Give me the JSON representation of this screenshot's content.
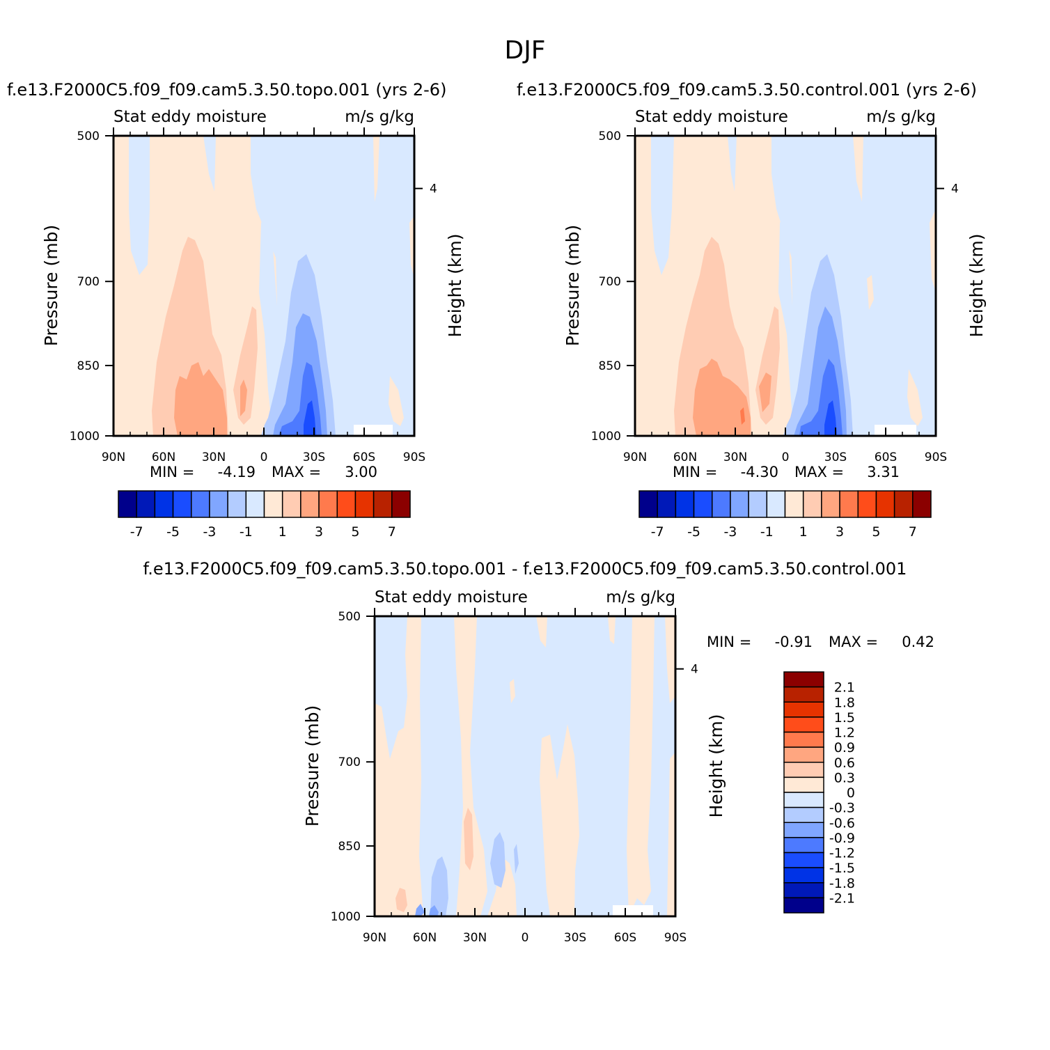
{
  "page_title": "DJF",
  "colorbar_colors": [
    "#00008b",
    "#0019b8",
    "#0033e6",
    "#1a4dff",
    "#4d7aff",
    "#80a6ff",
    "#b3ccff",
    "#d9e9ff",
    "#ffe9d6",
    "#ffccb3",
    "#ffa680",
    "#ff7a4d",
    "#ff4d1a",
    "#e63300",
    "#b82200",
    "#8b0000"
  ],
  "chart_data": [
    {
      "type": "heatmap",
      "title": "f.e13.F2000C5.f09_f09.cam5.3.50.topo.001 (yrs 2-6)",
      "subtitle_left": "Stat eddy moisture",
      "subtitle_right": "m/s g/kg",
      "ylabel": "Pressure (mb)",
      "ylabel_right": "Height (km)",
      "x_ticks": [
        "90N",
        "60N",
        "30N",
        "0",
        "30S",
        "60S",
        "90S"
      ],
      "y_ticks": [
        "500",
        "700",
        "850",
        "1000"
      ],
      "right_ticks": [
        "4"
      ],
      "min_label": "MIN =",
      "min_value": "-4.19",
      "max_label": "MAX =",
      "max_value": "3.00",
      "colorbar_labels": [
        "-7",
        "-5",
        "-3",
        "-1",
        "1",
        "3",
        "5",
        "7"
      ],
      "features": [
        {
          "lat": -30,
          "pressure": 920,
          "value": -4.19
        },
        {
          "lat": 45,
          "pressure": 950,
          "value": 3.0
        }
      ]
    },
    {
      "type": "heatmap",
      "title": "f.e13.F2000C5.f09_f09.cam5.3.50.control.001 (yrs 2-6)",
      "subtitle_left": "Stat eddy moisture",
      "subtitle_right": "m/s g/kg",
      "ylabel": "Pressure (mb)",
      "ylabel_right": "Height (km)",
      "x_ticks": [
        "90N",
        "60N",
        "30N",
        "0",
        "30S",
        "60S",
        "90S"
      ],
      "y_ticks": [
        "500",
        "700",
        "850",
        "1000"
      ],
      "right_ticks": [
        "4"
      ],
      "min_label": "MIN =",
      "min_value": "-4.30",
      "max_label": "MAX =",
      "max_value": "3.31",
      "colorbar_labels": [
        "-7",
        "-5",
        "-3",
        "-1",
        "1",
        "3",
        "5",
        "7"
      ],
      "features": [
        {
          "lat": -28,
          "pressure": 920,
          "value": -4.3
        },
        {
          "lat": 27,
          "pressure": 950,
          "value": 3.31
        }
      ]
    },
    {
      "type": "heatmap",
      "title": "f.e13.F2000C5.f09_f09.cam5.3.50.topo.001 - f.e13.F2000C5.f09_f09.cam5.3.50.control.001",
      "subtitle_left": "Stat eddy moisture",
      "subtitle_right": "m/s g/kg",
      "ylabel": "Pressure (mb)",
      "ylabel_right": "Height (km)",
      "x_ticks": [
        "90N",
        "60N",
        "30N",
        "0",
        "30S",
        "60S",
        "90S"
      ],
      "y_ticks": [
        "500",
        "700",
        "850",
        "1000"
      ],
      "right_ticks": [
        "4"
      ],
      "min_label": "MIN =",
      "min_value": "-0.91",
      "max_label": "MAX =",
      "max_value": "0.42",
      "colorbar_labels": [
        "2.1",
        "1.8",
        "1.5",
        "1.2",
        "0.9",
        "0.6",
        "0.3",
        "0",
        "-0.3",
        "-0.6",
        "-0.9",
        "-1.2",
        "-1.5",
        "-1.8",
        "-2.1"
      ],
      "features": [
        {
          "lat": 50,
          "pressure": 980,
          "value": -0.91
        },
        {
          "lat": 35,
          "pressure": 900,
          "value": 0.42
        }
      ]
    }
  ]
}
